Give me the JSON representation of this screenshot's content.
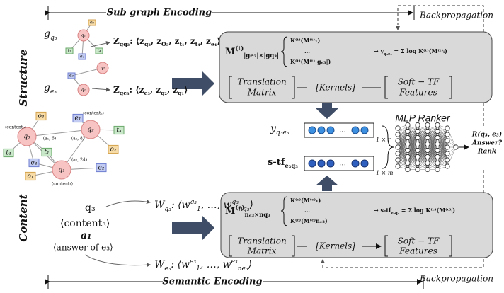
{
  "header": {
    "sub_graph_encoding": "Sub graph Encoding",
    "semantic_encoding": "Semantic Encoding",
    "backprop_top": "Backpropagation",
    "backprop_bottom": "Backpropagation",
    "structure": "Structure",
    "content": "Content",
    "mlp_ranker": "MLP Ranker"
  },
  "structure": {
    "g_q3": [
      {
        "b": "g",
        "sub": "q₃"
      }
    ],
    "g_e3": [
      {
        "b": "g",
        "sub": "e₃"
      }
    ],
    "z_q3": [
      {
        "b": "Z",
        "sub": "gq₃"
      },
      {
        "b": ": ⟨z",
        "sub": "q₃"
      },
      {
        "b": ", z",
        "sub": "O₃"
      },
      {
        "b": ", z",
        "sub": "t₁"
      },
      {
        "b": ", z",
        "sub": "t₄"
      },
      {
        "b": ", z",
        "sub": "e₄"
      },
      {
        "b": "⟩"
      }
    ],
    "z_e3": [
      {
        "b": "Z",
        "sub": "ge₃"
      },
      {
        "b": ": ⟨z",
        "sub": "e₃"
      },
      {
        "b": ", z",
        "sub": "q₂"
      },
      {
        "b": ", z",
        "sub": "q₁"
      },
      {
        "b": "⟩"
      }
    ],
    "graph_top": {
      "nodes": [
        "q₁",
        "o₃",
        "t₁",
        "e₄",
        "t₄"
      ]
    },
    "graph_e": {
      "nodes": [
        "q₂",
        "e₃",
        "q₁"
      ]
    },
    "graph_main": {
      "nodes": [
        "q₃",
        "o₃",
        "e₁",
        "q₂",
        "t₃",
        "o₂",
        "t₄",
        "e₄",
        "t₁",
        "e₂",
        "o₁",
        "q₁"
      ],
      "edge_labels": [
        "⟨content₃⟩",
        "⟨content₂⟩",
        "⟨content₁⟩",
        "(a₁, 6)",
        "(a₂, 8)",
        "(a₂, 24)"
      ]
    }
  },
  "content": {
    "q3": "q₃",
    "content3": "⟨content₃⟩",
    "a1": "a₁",
    "answer": "⟨answer of e₃⟩",
    "w_q3": [
      {
        "b": "W",
        "sub": "q₃"
      },
      {
        "b": ": ⟨w",
        "sup": "q₃",
        "sub": "1"
      },
      {
        "b": ", …, w",
        "sup": "q₃",
        "sub": "nq₃"
      },
      {
        "b": "⟩"
      }
    ],
    "w_e3": [
      {
        "b": "W",
        "sub": "e₃"
      },
      {
        "b": ": ⟨w",
        "sup": "e₃",
        "sub": "1"
      },
      {
        "b": ", …, w",
        "sup": "e₃",
        "sub": "ne₃"
      },
      {
        "b": "⟩"
      }
    ]
  },
  "top_box": {
    "m": [
      {
        "b": "M",
        "sup": "(t)",
        "sub": "|ge₃|×|gq₃|"
      }
    ],
    "lines": [
      "K⁽ᵗ⁾(M⁽ᵗ⁾₁)",
      "…",
      "K⁽ᵗ⁾(M⁽ᵗ⁾|gₑ₃|)"
    ],
    "result": [
      {
        "b": "→ y",
        "sub": "q₃e₃"
      },
      {
        "b": " = Σ log K⁽ᵗ⁾(M⁽ᵗ⁾ᵢ)"
      }
    ],
    "translation": [
      "Translation",
      "Matrix"
    ],
    "kernels": "[Kernels]",
    "soft_tf": [
      "Soft − TF",
      "Features"
    ]
  },
  "bottom_box": {
    "m": [
      {
        "b": "M",
        "sup": "(c)",
        "sub": "nₑ₃×nq₃"
      }
    ],
    "lines": [
      "K⁽ᶜ⁾(M⁽ᶜ⁾₁)",
      "…",
      "K⁽ᶜ⁾(M⁽ᶜ⁾nₑ₃)"
    ],
    "result": [
      {
        "b": "→ s-tf",
        "sub": "e₃q₃"
      },
      {
        "b": " = Σ log K⁽ᶜ⁾(M⁽ᶜ⁾ᵢ)"
      }
    ],
    "translation": [
      "Translation",
      "Matrix"
    ],
    "kernels": "[Kernels]",
    "soft_tf": [
      "Soft − TF",
      "Features"
    ]
  },
  "vectors": {
    "y_label": [
      {
        "b": "y",
        "sub": "q₃e₃"
      }
    ],
    "y_dim": "1 × r",
    "stf_label": [
      {
        "b": "s-tf",
        "sub": "e₃q₃"
      }
    ],
    "stf_dim": "1 × m",
    "ellipsis": "…"
  },
  "output": [
    "R(q₃, e₃)",
    "Answer?",
    "Rank"
  ]
}
